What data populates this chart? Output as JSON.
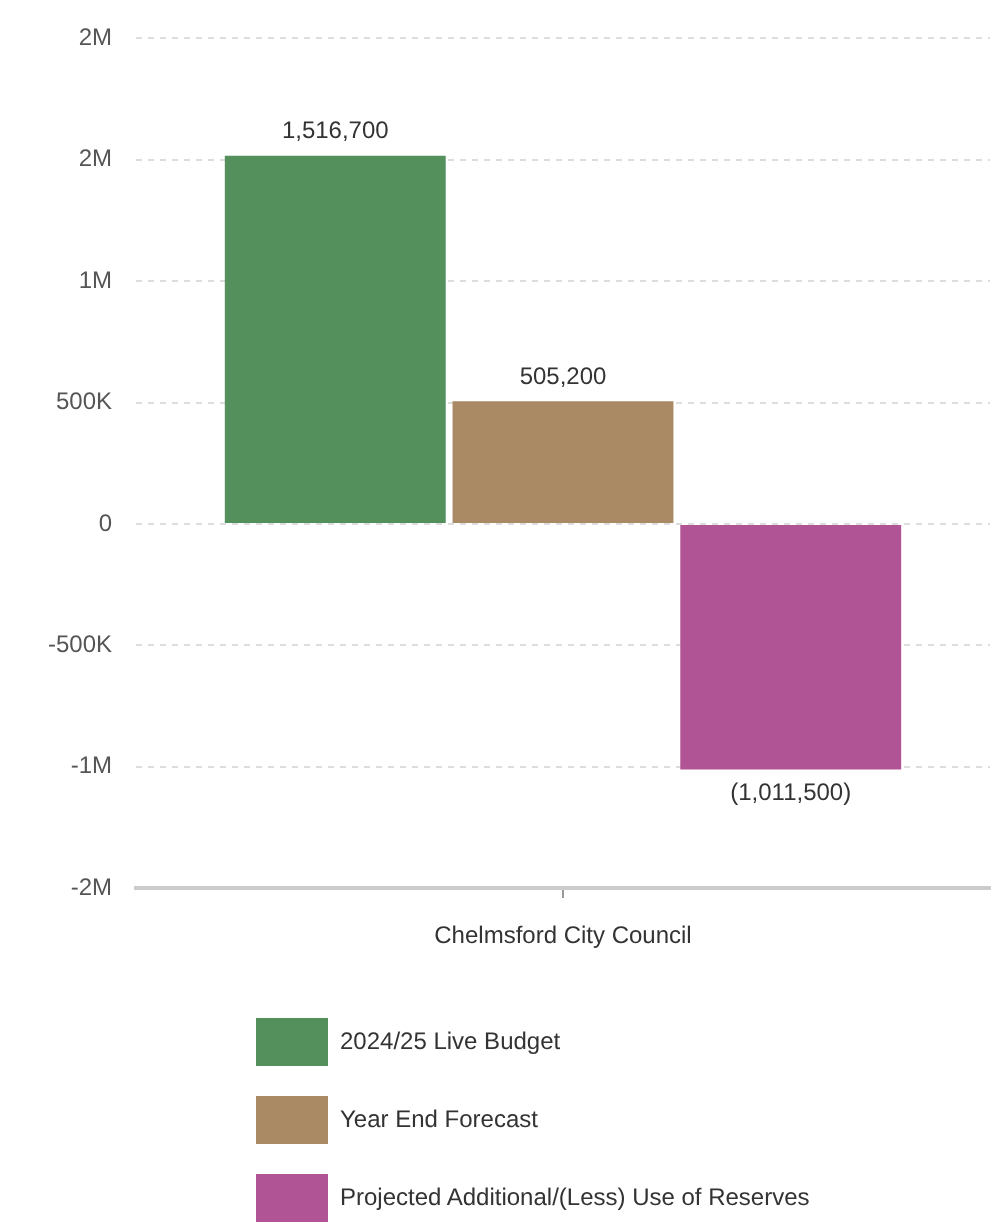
{
  "chart_data": {
    "type": "bar",
    "categories": [
      "Chelmsford City Council"
    ],
    "series": [
      {
        "name": "2024/25 Live Budget",
        "color": "#54905c",
        "values": [
          1516700
        ],
        "value_labels": [
          "1,516,700"
        ]
      },
      {
        "name": "Year End Forecast",
        "color": "#a98a64",
        "values": [
          505200
        ],
        "value_labels": [
          "505,200"
        ]
      },
      {
        "name": "Projected Additional/(Less) Use of Reserves",
        "color": "#b05496",
        "values": [
          -1011500
        ],
        "value_labels": [
          "(1,011,500)"
        ]
      }
    ],
    "ylim": [
      -1500000,
      2000000
    ],
    "yticks": [
      {
        "value": -1500000,
        "label": "-2M"
      },
      {
        "value": -1000000,
        "label": "-1M"
      },
      {
        "value": -500000,
        "label": "-500K"
      },
      0,
      {
        "value": 500000,
        "label": "500K"
      },
      {
        "value": 1000000,
        "label": "1M"
      },
      {
        "value": 1500000,
        "label": "2M"
      },
      {
        "value": 2000000,
        "label": "2M"
      }
    ],
    "grid": "y",
    "legend": "bottom left"
  }
}
